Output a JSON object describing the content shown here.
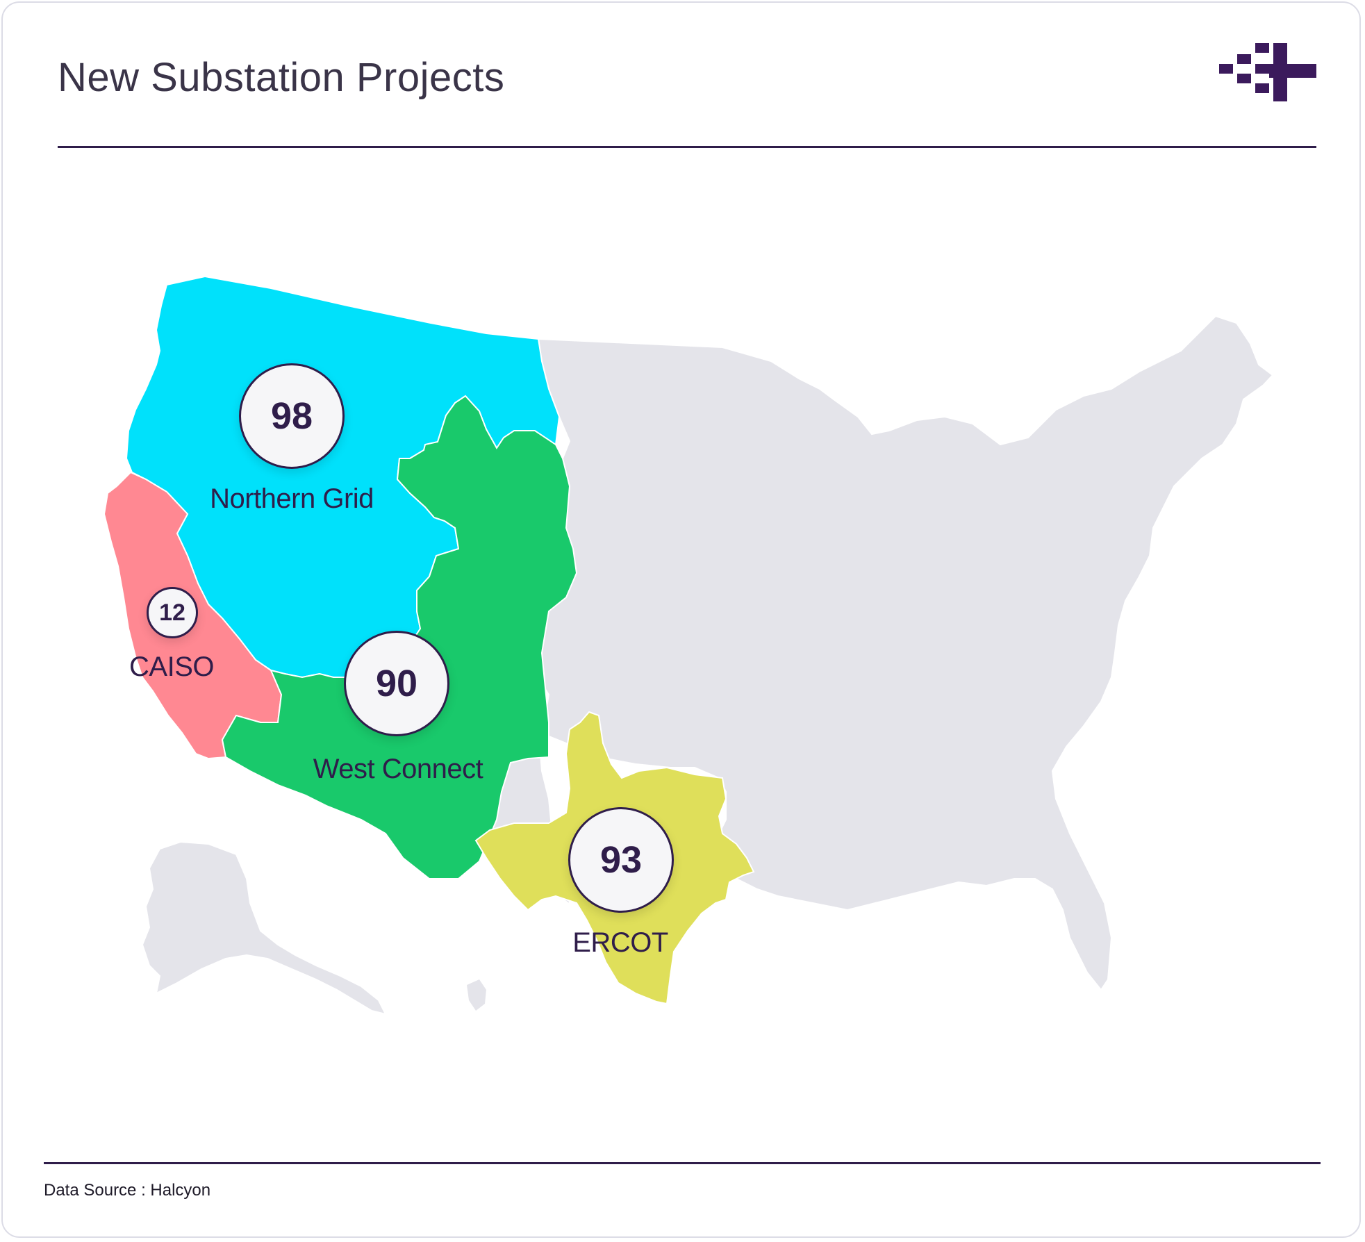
{
  "header": {
    "title": "New Substation Projects"
  },
  "footer": {
    "source": "Data Source : Halcyon"
  },
  "colors": {
    "northern_grid": "#00e1fb",
    "caiso": "#ff8892",
    "west_connect": "#19c96b",
    "ercot": "#dfdf5a",
    "other": "#e4e4ea",
    "accent": "#2f1d4a"
  },
  "regions": [
    {
      "name": "Northern Grid",
      "count": "98"
    },
    {
      "name": "CAISO",
      "count": "12"
    },
    {
      "name": "West Connect",
      "count": "90"
    },
    {
      "name": "ERCOT",
      "count": "93"
    }
  ]
}
